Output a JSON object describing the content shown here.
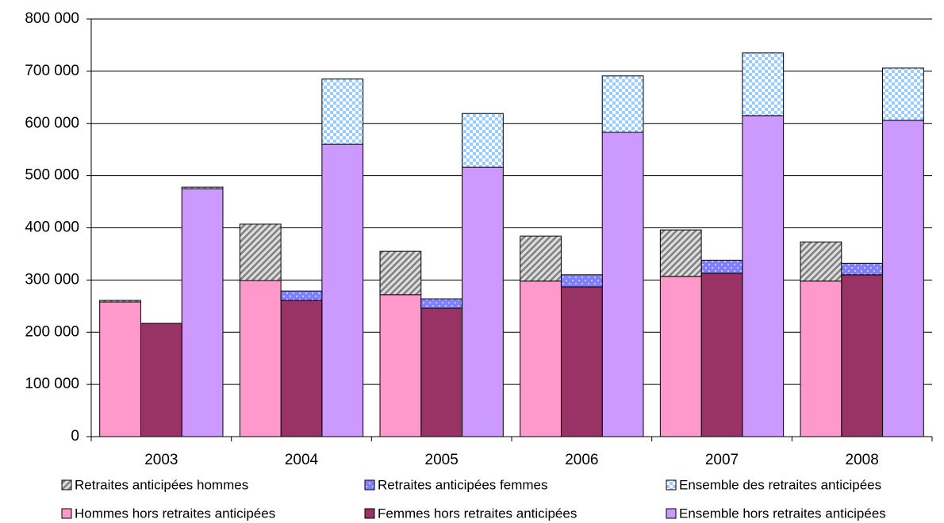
{
  "chart_data": {
    "type": "stacked-grouped-bar",
    "categories": [
      "2003",
      "2004",
      "2005",
      "2006",
      "2007",
      "2008"
    ],
    "series": [
      {
        "name": "Retraites anticipées hommes",
        "color": "#a6a6a6",
        "pattern": "hatch",
        "stack": 0,
        "values": [
          3000,
          108000,
          83000,
          86000,
          89000,
          75000
        ]
      },
      {
        "name": "Retraites anticipées femmes",
        "color": "#8080ff",
        "pattern": "dots",
        "stack": 1,
        "values": [
          0,
          18000,
          18000,
          23000,
          25000,
          22000
        ]
      },
      {
        "name": "Ensemble des retraites anticipées",
        "color": "#99ccff",
        "pattern": "checker",
        "stack": 2,
        "values": [
          3000,
          125000,
          103000,
          108000,
          120000,
          100000
        ]
      },
      {
        "name": "Hommes hors retraites anticipées",
        "color": "#ff99cc",
        "pattern": "solid",
        "stack": 0,
        "values": [
          258000,
          299000,
          272000,
          298000,
          307000,
          298000
        ]
      },
      {
        "name": "Femmes hors retraites anticipées",
        "color": "#993366",
        "pattern": "solid",
        "stack": 1,
        "values": [
          217000,
          261000,
          246000,
          287000,
          313000,
          310000
        ]
      },
      {
        "name": "Ensemble hors retraites anticipées",
        "color": "#cc99ff",
        "pattern": "solid",
        "stack": 2,
        "values": [
          475000,
          560000,
          516000,
          583000,
          615000,
          606000
        ]
      }
    ],
    "ylim": [
      0,
      800000
    ],
    "yticks": [
      0,
      {
        "value": 100000,
        "label": "100 000"
      },
      {
        "value": 200000,
        "label": "200 000"
      },
      {
        "value": 300000,
        "label": "300 000"
      },
      {
        "value": 400000,
        "label": "400 000"
      },
      {
        "value": 500000,
        "label": "500 000"
      },
      {
        "value": 600000,
        "label": "600 000"
      },
      {
        "value": 700000,
        "label": "700 000"
      },
      {
        "value": 800000,
        "label": "800 000"
      }
    ],
    "grid": true
  }
}
